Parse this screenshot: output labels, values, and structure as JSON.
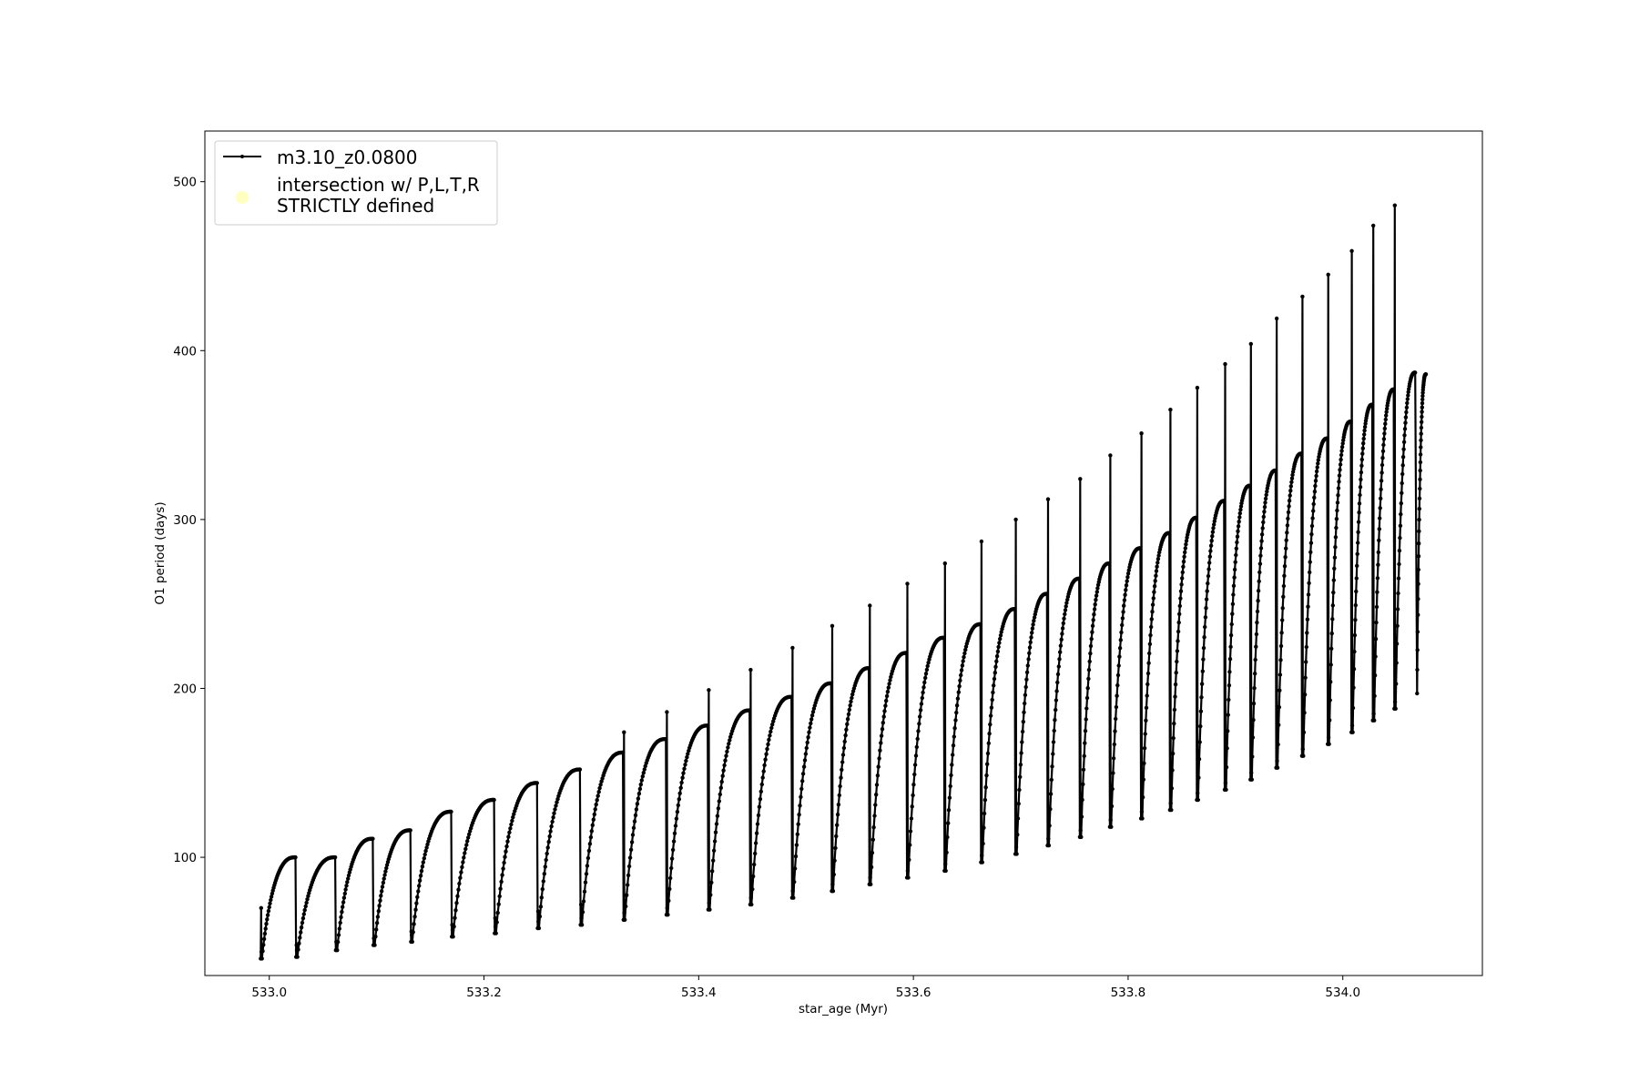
{
  "chart_data": {
    "type": "line",
    "xlabel": "star_age (Myr)",
    "ylabel": "O1 period (days)",
    "xlim": [
      532.94,
      534.13
    ],
    "ylim": [
      30,
      530
    ],
    "x_ticks": [
      533.0,
      533.2,
      533.4,
      533.6,
      533.8,
      534.0
    ],
    "x_tick_labels": [
      "533.0",
      "533.2",
      "533.4",
      "533.6",
      "533.8",
      "534.0"
    ],
    "y_ticks": [
      100,
      200,
      300,
      400,
      500
    ],
    "y_tick_labels": [
      "100",
      "200",
      "300",
      "400",
      "500"
    ],
    "grid": false,
    "legend_position": "upper-left",
    "series": [
      {
        "name": "m3.10_z0.0800",
        "style": "line with small point markers",
        "color": "#000000",
        "pulses": [
          {
            "start": 532.992,
            "end": 533.025,
            "low": 40,
            "peak": 100,
            "spike": 70
          },
          {
            "start": 533.025,
            "end": 533.062,
            "low": 41,
            "peak": 100,
            "spike": 48
          },
          {
            "start": 533.062,
            "end": 533.097,
            "low": 45,
            "peak": 111,
            "spike": 50
          },
          {
            "start": 533.097,
            "end": 533.132,
            "low": 48,
            "peak": 116,
            "spike": 52
          },
          {
            "start": 533.132,
            "end": 533.17,
            "low": 50,
            "peak": 127,
            "spike": 56
          },
          {
            "start": 533.17,
            "end": 533.21,
            "low": 53,
            "peak": 134,
            "spike": 60
          },
          {
            "start": 533.21,
            "end": 533.25,
            "low": 55,
            "peak": 144,
            "spike": 64
          },
          {
            "start": 533.25,
            "end": 533.29,
            "low": 58,
            "peak": 152,
            "spike": 68
          },
          {
            "start": 533.29,
            "end": 533.33,
            "low": 60,
            "peak": 162,
            "spike": 72
          },
          {
            "start": 533.33,
            "end": 533.37,
            "low": 63,
            "peak": 170,
            "spike": 174
          },
          {
            "start": 533.37,
            "end": 533.409,
            "low": 66,
            "peak": 178,
            "spike": 186
          },
          {
            "start": 533.409,
            "end": 533.448,
            "low": 69,
            "peak": 187,
            "spike": 199
          },
          {
            "start": 533.448,
            "end": 533.487,
            "low": 72,
            "peak": 195,
            "spike": 211
          },
          {
            "start": 533.487,
            "end": 533.524,
            "low": 76,
            "peak": 203,
            "spike": 224
          },
          {
            "start": 533.524,
            "end": 533.559,
            "low": 80,
            "peak": 212,
            "spike": 237
          },
          {
            "start": 533.559,
            "end": 533.594,
            "low": 84,
            "peak": 221,
            "spike": 249
          },
          {
            "start": 533.594,
            "end": 533.629,
            "low": 88,
            "peak": 230,
            "spike": 262
          },
          {
            "start": 533.629,
            "end": 533.663,
            "low": 92,
            "peak": 238,
            "spike": 274
          },
          {
            "start": 533.663,
            "end": 533.695,
            "low": 97,
            "peak": 247,
            "spike": 287
          },
          {
            "start": 533.695,
            "end": 533.725,
            "low": 102,
            "peak": 256,
            "spike": 300
          },
          {
            "start": 533.725,
            "end": 533.755,
            "low": 107,
            "peak": 265,
            "spike": 312
          },
          {
            "start": 533.755,
            "end": 533.783,
            "low": 112,
            "peak": 274,
            "spike": 324
          },
          {
            "start": 533.783,
            "end": 533.812,
            "low": 118,
            "peak": 283,
            "spike": 338
          },
          {
            "start": 533.812,
            "end": 533.839,
            "low": 123,
            "peak": 292,
            "spike": 351
          },
          {
            "start": 533.839,
            "end": 533.864,
            "low": 128,
            "peak": 301,
            "spike": 365
          },
          {
            "start": 533.864,
            "end": 533.89,
            "low": 134,
            "peak": 311,
            "spike": 378
          },
          {
            "start": 533.89,
            "end": 533.914,
            "low": 140,
            "peak": 320,
            "spike": 392
          },
          {
            "start": 533.914,
            "end": 533.938,
            "low": 146,
            "peak": 329,
            "spike": 404
          },
          {
            "start": 533.938,
            "end": 533.962,
            "low": 153,
            "peak": 339,
            "spike": 419
          },
          {
            "start": 533.962,
            "end": 533.986,
            "low": 160,
            "peak": 348,
            "spike": 432
          },
          {
            "start": 533.986,
            "end": 534.008,
            "low": 167,
            "peak": 358,
            "spike": 445
          },
          {
            "start": 534.008,
            "end": 534.028,
            "low": 174,
            "peak": 368,
            "spike": 459
          },
          {
            "start": 534.028,
            "end": 534.048,
            "low": 181,
            "peak": 377,
            "spike": 474
          },
          {
            "start": 534.048,
            "end": 534.068,
            "low": 188,
            "peak": 387,
            "spike": 486
          },
          {
            "start": 534.068,
            "end": 534.078,
            "low": 197,
            "peak": 386,
            "spike": 0
          }
        ]
      },
      {
        "name": "intersection w/ P,L,T,R STRICTLY defined",
        "style": "scatter",
        "color": "#ffffc0",
        "values": []
      }
    ],
    "legend": [
      {
        "line1": "m3.10_z0.0800",
        "line2": ""
      },
      {
        "line1": "intersection w/ P,L,T,R",
        "line2": "STRICTLY defined"
      }
    ]
  }
}
